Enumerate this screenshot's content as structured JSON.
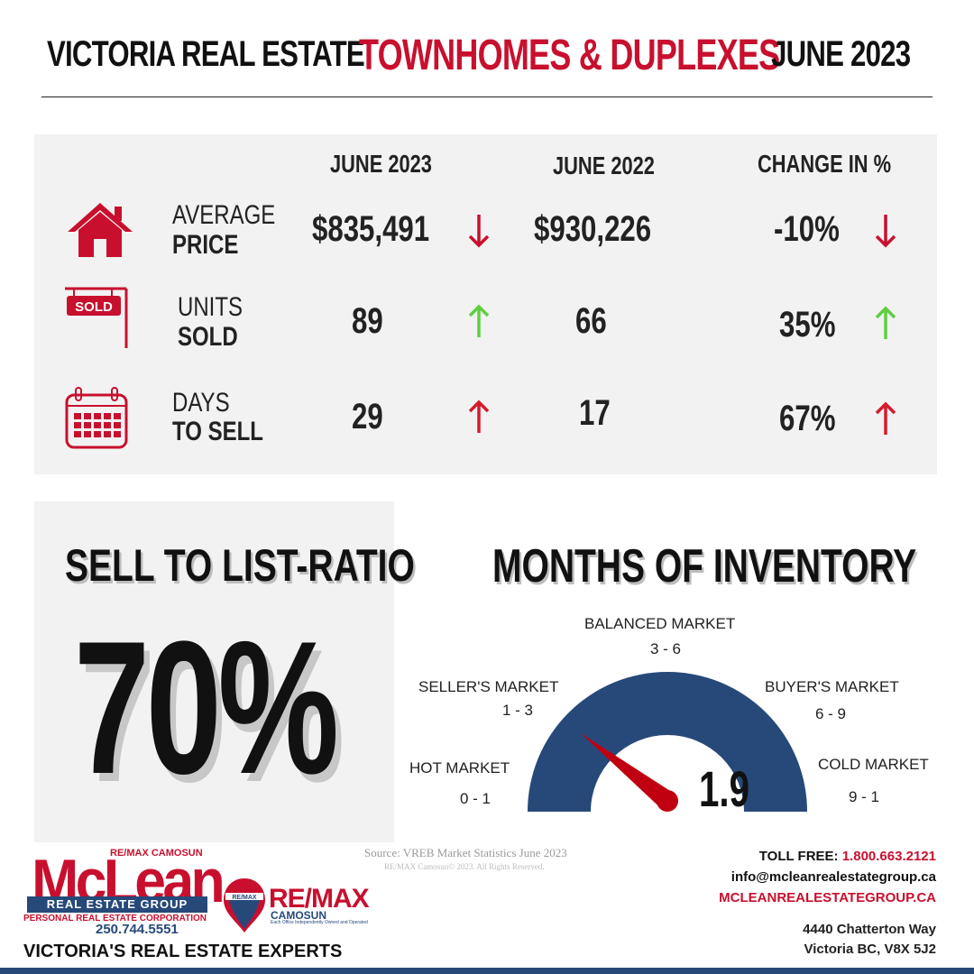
{
  "header": {
    "left_title": "VICTORIA REAL ESTATE",
    "category": "TOWNHOMES & DUPLEXES",
    "period": "JUNE 2023"
  },
  "stats": {
    "columns": [
      "JUNE 2023",
      "JUNE 2022",
      "CHANGE IN %"
    ],
    "rows": [
      {
        "icon": "house-icon",
        "label_top": "AVERAGE",
        "label_bottom": "PRICE",
        "current": "$835,491",
        "current_trend": "down",
        "previous": "$930,226",
        "change": "-10%",
        "change_trend": "down"
      },
      {
        "icon": "sold-sign-icon",
        "sign_text": "SOLD",
        "label_top": "UNITS",
        "label_bottom": "SOLD",
        "current": "89",
        "current_trend": "up",
        "previous": "66",
        "change": "35%",
        "change_trend": "up"
      },
      {
        "icon": "calendar-icon",
        "label_top": "DAYS",
        "label_bottom": "TO SELL",
        "current": "29",
        "current_trend": "up",
        "previous": "17",
        "change": "67%",
        "change_trend": "up"
      }
    ],
    "colors": {
      "up_green": "#5fcf3f",
      "up_red": "#d41c2c",
      "down_red": "#c8102e",
      "icon_red": "#c8102e"
    }
  },
  "sell_to_list": {
    "title": "SELL TO LIST-RATIO",
    "value": "70%"
  },
  "inventory": {
    "title": "MONTHS OF INVENTORY",
    "value": "1.9",
    "gauge_color": "#27497a",
    "needle_color": "#c00010",
    "markets": {
      "hot": {
        "name": "HOT MARKET",
        "range": "0 - 1"
      },
      "seller": {
        "name": "SELLER'S MARKET",
        "range": "1 - 3"
      },
      "balanced": {
        "name": "BALANCED MARKET",
        "range": "3 - 6"
      },
      "buyer": {
        "name": "BUYER'S MARKET",
        "range": "6 - 9"
      },
      "cold": {
        "name": "COLD MARKET",
        "range": "9 - 1"
      }
    }
  },
  "footer": {
    "source": "Source: VREB Market Statistics June 2023",
    "copyright": "RE/MAX Camosun© 2023. All Rights Reserved.",
    "brand": {
      "remax_camosun_small": "RE/MAX CAMOSUN",
      "mclean": "McLean",
      "group": "REAL ESTATE GROUP",
      "corporation": "PERSONAL REAL ESTATE CORPORATION",
      "phone": "250.744.5551",
      "tagline": "VICTORIA'S REAL ESTATE EXPERTS"
    },
    "remax_logo": {
      "balloon_text": "RE/MAX",
      "wordmark": "RE/MAX",
      "office": "CAMOSUN",
      "disclaimer": "Each Office Independently Owned and Operated"
    },
    "contact": {
      "toll_free_label": "TOLL FREE:",
      "toll_free_number": "1.800.663.2121",
      "email": "info@mcleanrealestategroup.ca",
      "website": "MCLEANREALESTATEGROUP.CA",
      "address_line1": "4440 Chatterton Way",
      "address_line2": "Victoria BC, V8X 5J2"
    }
  }
}
